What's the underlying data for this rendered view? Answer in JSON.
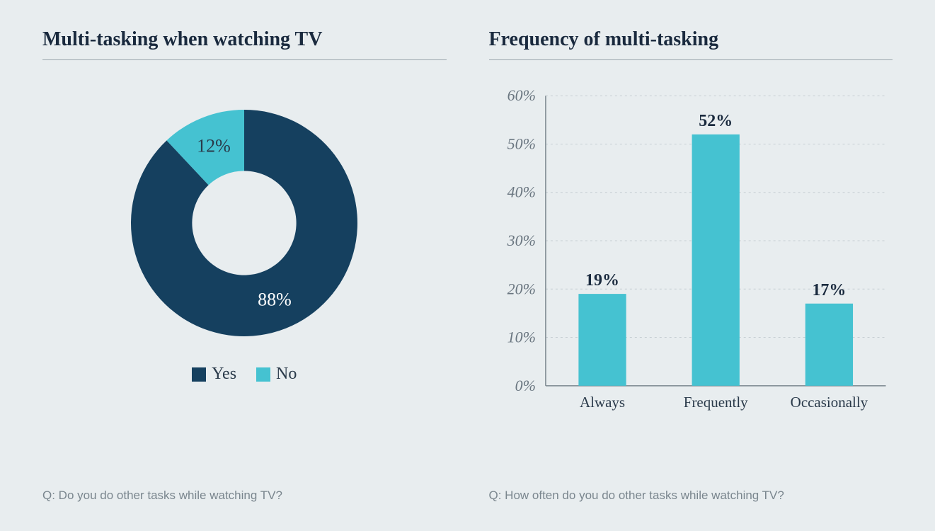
{
  "background_color": "#e8edef",
  "title_color": "#1a2a3e",
  "divider_color": "#9aa5ac",
  "donut": {
    "title": "Multi-tasking when watching TV",
    "type": "donut",
    "inner_radius_pct": 46,
    "slices": [
      {
        "label": "Yes",
        "value": 88,
        "display": "88%",
        "color": "#15405f"
      },
      {
        "label": "No",
        "value": 12,
        "display": "12%",
        "color": "#45c2d1"
      }
    ],
    "legend_font_size": 24,
    "value_font_size": 26,
    "value_color_dark": "#ffffff",
    "value_color_light": "#2a3a4a",
    "caption": "Q: Do you do other tasks while watching TV?"
  },
  "bars": {
    "title": "Frequency of multi-tasking",
    "type": "bar",
    "categories": [
      "Always",
      "Frequently",
      "Occasionally"
    ],
    "values": [
      19,
      52,
      17
    ],
    "value_labels": [
      "19%",
      "52%",
      "17%"
    ],
    "bar_color": "#45c2d1",
    "ylim": [
      0,
      60
    ],
    "ytick_step": 10,
    "ytick_labels": [
      "0%",
      "10%",
      "20%",
      "30%",
      "40%",
      "50%",
      "60%"
    ],
    "axis_color": "#7a868e",
    "grid_color": "#c6ced3",
    "axis_label_font": "Georgia, serif",
    "axis_label_fontsize": 22,
    "axis_label_style": "italic",
    "axis_label_color": "#6a7680",
    "category_fontsize": 21,
    "category_color": "#2a3a4a",
    "value_label_fontsize": 24,
    "value_label_color": "#1a2a3e",
    "bar_width_ratio": 0.42,
    "caption": "Q: How often do you do other tasks while watching TV?"
  }
}
